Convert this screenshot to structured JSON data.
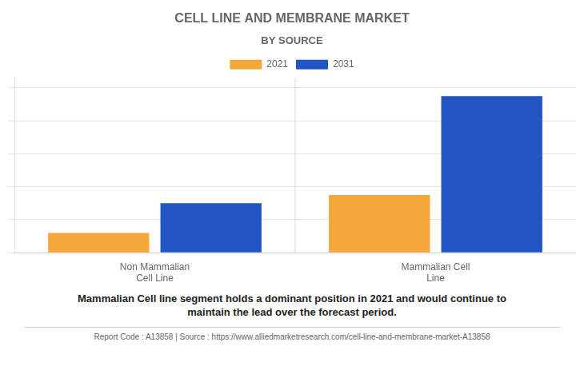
{
  "chart_data": {
    "type": "bar",
    "title": "CELL LINE AND MEMBRANE MARKET",
    "subtitle": "BY SOURCE",
    "categories": [
      "Non Mammalian\nCell Line",
      "Mammalian Cell\nLine"
    ],
    "series": [
      {
        "name": "2021",
        "color": "#F5A83A",
        "values": [
          1.2,
          3.5
        ]
      },
      {
        "name": "2031",
        "color": "#2155C4",
        "values": [
          3.0,
          9.5
        ]
      }
    ],
    "ylim": [
      0,
      10.64
    ],
    "yticks": [
      0,
      2,
      4,
      6,
      8,
      10
    ],
    "grid": true,
    "legend": "top",
    "tick_labels": "x",
    "annotation": "Mammalian Cell line segment holds a dominant position in 2021 and would continue to\nmaintain the lead over the forecast period.",
    "footer": "Report Code : A13858  |  Source : https://www.alliedmarketresearch.com/cell-line-and-membrane-market-A13858"
  }
}
